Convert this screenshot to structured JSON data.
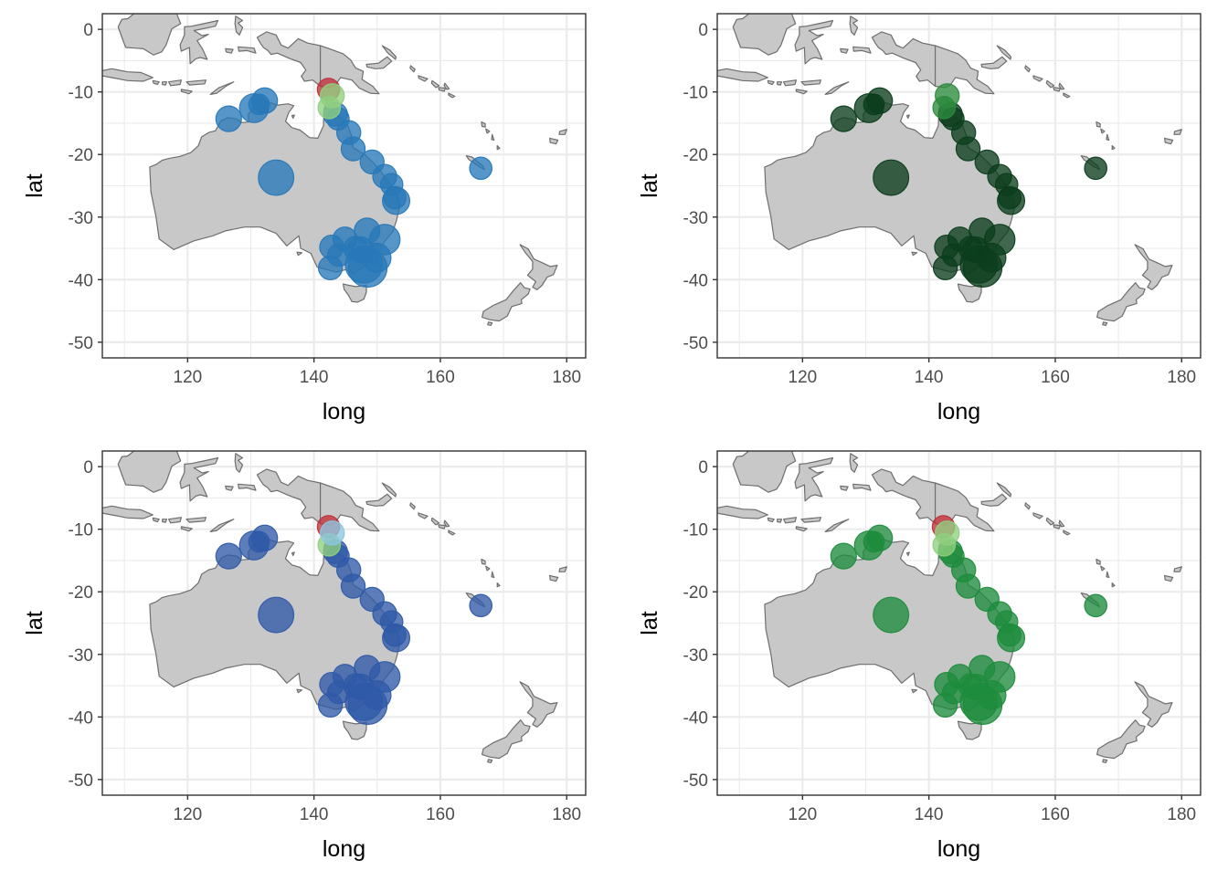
{
  "axes": {
    "xlabel": "long",
    "ylabel": "lat",
    "xlim": [
      106.5,
      183
    ],
    "ylim": [
      -52.5,
      2.5
    ],
    "xticks": [
      120,
      140,
      160,
      180
    ],
    "yticks": [
      0,
      -10,
      -20,
      -30,
      -40,
      -50
    ],
    "xtick_labels": [
      "120",
      "140",
      "160",
      "180"
    ],
    "ytick_labels": [
      "0",
      "-10",
      "-20",
      "-30",
      "-40",
      "-50"
    ],
    "grid": true
  },
  "colors": {
    "land": "#c8c8c8",
    "coastline": "#6e6e6e",
    "red_point": "#c0303a",
    "light_green_point": "#8fd07f"
  },
  "chart_data": [
    {
      "type": "scatter",
      "panel": "top-left",
      "xlabel": "long",
      "ylabel": "lat",
      "xlim": [
        106.5,
        183
      ],
      "ylim": [
        -52.5,
        2.5
      ],
      "series": [
        {
          "color": "#2878b8",
          "values_ref": "sites"
        }
      ]
    },
    {
      "type": "scatter",
      "panel": "top-right",
      "xlabel": "long",
      "ylabel": "lat",
      "xlim": [
        106.5,
        183
      ],
      "ylim": [
        -52.5,
        2.5
      ],
      "series": [
        {
          "color": "#0b3d1c",
          "values_ref": "sites"
        }
      ]
    },
    {
      "type": "scatter",
      "panel": "bottom-left",
      "xlabel": "long",
      "ylabel": "lat",
      "xlim": [
        106.5,
        183
      ],
      "ylim": [
        -52.5,
        2.5
      ],
      "series": [
        {
          "color": "#2f5aa8",
          "values_ref": "sites"
        }
      ]
    },
    {
      "type": "scatter",
      "panel": "bottom-right",
      "xlabel": "long",
      "ylabel": "lat",
      "xlim": [
        106.5,
        183
      ],
      "ylim": [
        -52.5,
        2.5
      ],
      "series": [
        {
          "color": "#1d8c3c",
          "values_ref": "sites"
        }
      ]
    }
  ],
  "sites": [
    {
      "long": 126.5,
      "lat": -14.3,
      "size": 1.0
    },
    {
      "long": 130.5,
      "lat": -12.6,
      "size": 1.2
    },
    {
      "long": 132.2,
      "lat": -11.4,
      "size": 1.0
    },
    {
      "long": 131.3,
      "lat": -12.0,
      "size": 0.7
    },
    {
      "long": 134.0,
      "lat": -23.7,
      "size": 1.6
    },
    {
      "long": 143.4,
      "lat": -13.6,
      "size": 0.9
    },
    {
      "long": 143.8,
      "lat": -14.3,
      "size": 0.8
    },
    {
      "long": 145.5,
      "lat": -16.5,
      "size": 0.9
    },
    {
      "long": 146.2,
      "lat": -19.1,
      "size": 0.9
    },
    {
      "long": 149.2,
      "lat": -21.2,
      "size": 0.9
    },
    {
      "long": 151.2,
      "lat": -23.5,
      "size": 0.9
    },
    {
      "long": 152.3,
      "lat": -24.8,
      "size": 0.8
    },
    {
      "long": 153.0,
      "lat": -27.4,
      "size": 1.1
    },
    {
      "long": 152.8,
      "lat": -26.9,
      "size": 0.8
    },
    {
      "long": 142.8,
      "lat": -34.8,
      "size": 0.9
    },
    {
      "long": 144.9,
      "lat": -33.5,
      "size": 0.9
    },
    {
      "long": 143.9,
      "lat": -36.1,
      "size": 0.8
    },
    {
      "long": 146.6,
      "lat": -35.0,
      "size": 0.9
    },
    {
      "long": 148.4,
      "lat": -32.2,
      "size": 1.0
    },
    {
      "long": 151.2,
      "lat": -33.6,
      "size": 1.3
    },
    {
      "long": 147.4,
      "lat": -35.2,
      "size": 1.0
    },
    {
      "long": 149.9,
      "lat": -36.5,
      "size": 1.2
    },
    {
      "long": 142.6,
      "lat": -38.1,
      "size": 0.9
    },
    {
      "long": 147.9,
      "lat": -37.6,
      "size": 1.7
    },
    {
      "long": 148.5,
      "lat": -38.1,
      "size": 1.8
    },
    {
      "long": 166.4,
      "lat": -22.2,
      "size": 0.8
    }
  ],
  "special_points": [
    {
      "long": 142.3,
      "lat": -9.6,
      "size": 0.8,
      "color": "#c0303a"
    },
    {
      "long": 142.4,
      "lat": -12.5,
      "size": 0.8,
      "color": "#8fd07f"
    },
    {
      "long": 142.9,
      "lat": -10.6,
      "size": 0.9,
      "color": "#8fd07f"
    }
  ]
}
